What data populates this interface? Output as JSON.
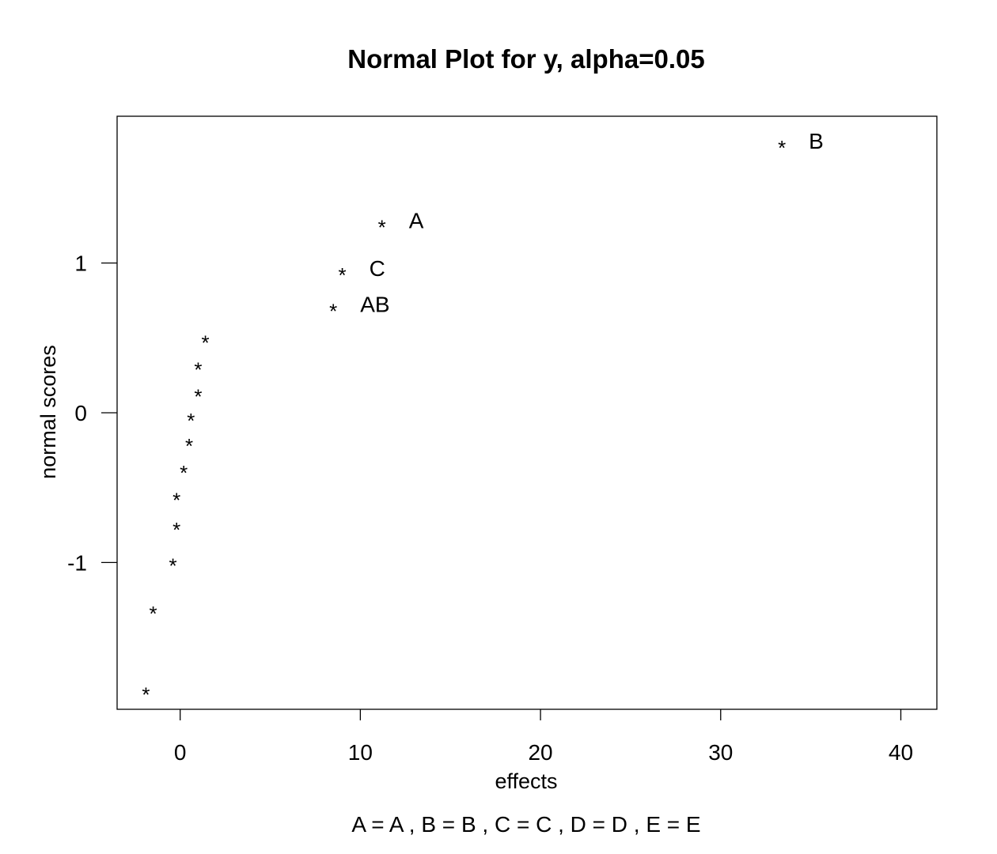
{
  "chart_data": {
    "type": "scatter",
    "title": "Normal Plot for y, alpha=0.05",
    "xlabel": "effects",
    "ylabel": "normal scores",
    "xlim": [
      -3.5,
      42
    ],
    "ylim": [
      -1.98,
      1.98
    ],
    "xticks": [
      0,
      10,
      20,
      30,
      40
    ],
    "xtick_labels": [
      "0",
      "10",
      "20",
      "30",
      "40"
    ],
    "yticks": [
      -1,
      0,
      1
    ],
    "ytick_labels": [
      "-1",
      "0",
      "1"
    ],
    "marker": "*",
    "grid": false,
    "points": [
      {
        "x": -1.9,
        "y": -1.84,
        "label": ""
      },
      {
        "x": -1.5,
        "y": -1.3,
        "label": ""
      },
      {
        "x": -0.4,
        "y": -0.98,
        "label": ""
      },
      {
        "x": -0.2,
        "y": -0.74,
        "label": ""
      },
      {
        "x": -0.2,
        "y": -0.54,
        "label": ""
      },
      {
        "x": 0.2,
        "y": -0.36,
        "label": ""
      },
      {
        "x": 0.5,
        "y": -0.18,
        "label": ""
      },
      {
        "x": 0.6,
        "y": -0.01,
        "label": ""
      },
      {
        "x": 1.0,
        "y": 0.15,
        "label": ""
      },
      {
        "x": 1.0,
        "y": 0.33,
        "label": ""
      },
      {
        "x": 1.4,
        "y": 0.51,
        "label": ""
      },
      {
        "x": 8.5,
        "y": 0.72,
        "label": "AB"
      },
      {
        "x": 9.0,
        "y": 0.96,
        "label": "C"
      },
      {
        "x": 11.2,
        "y": 1.28,
        "label": "A"
      },
      {
        "x": 33.4,
        "y": 1.81,
        "label": "B"
      }
    ],
    "footer": "A = A ,  B = B ,  C = C ,  D = D ,  E = E"
  }
}
